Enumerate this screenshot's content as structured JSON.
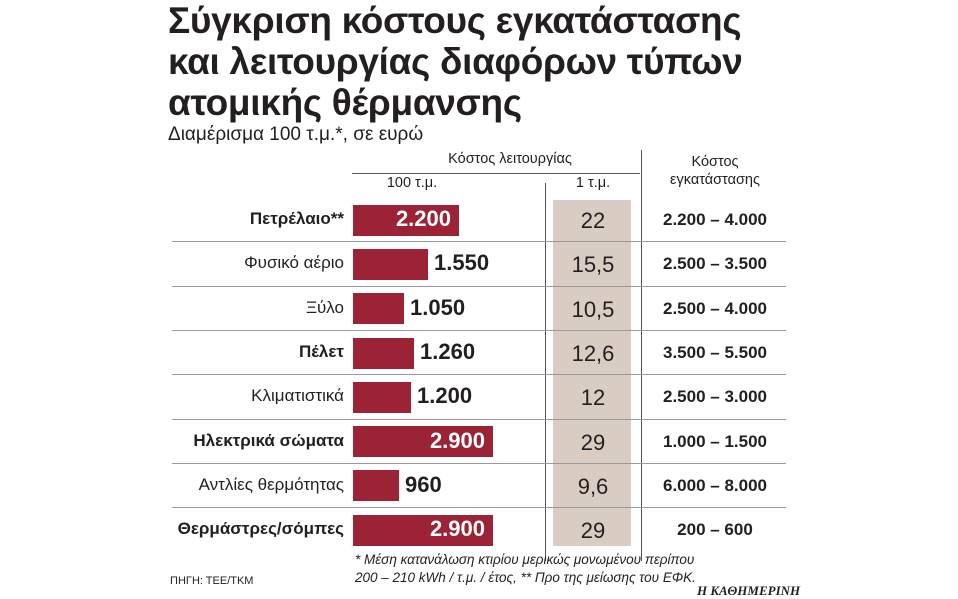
{
  "title_lines": [
    "Σύγκριση κόστους εγκατάστασης",
    "και λειτουργίας διαφόρων τύπων",
    "ατομικής θέρμανσης"
  ],
  "subtitle": "Διαμέρισμα 100 τ.μ.*, σε ευρώ",
  "headers": {
    "operating": "Κόστος λειτουργίας",
    "per100": "100 τ.μ.",
    "per1": "1 τ.μ.",
    "install_line1": "Κόστος",
    "install_line2": "εγκατάστασης"
  },
  "chart_data": {
    "type": "table",
    "columns": [
      "Κόστος λειτουργίας 100 τ.μ.",
      "Κόστος λειτουργίας 1 τ.μ.",
      "Κόστος εγκατάστασης"
    ],
    "rows": [
      {
        "label": "Πετρέλαιο**",
        "bold": true,
        "value": 2200,
        "value_label": "2.200",
        "per_sqm": "22",
        "install": "2.200 – 4.000"
      },
      {
        "label": "Φυσικό αέριο",
        "bold": false,
        "value": 1550,
        "value_label": "1.550",
        "per_sqm": "15,5",
        "install": "2.500 – 3.500"
      },
      {
        "label": "Ξύλο",
        "bold": false,
        "value": 1050,
        "value_label": "1.050",
        "per_sqm": "10,5",
        "install": "2.500 – 4.000"
      },
      {
        "label": "Πέλετ",
        "bold": true,
        "value": 1260,
        "value_label": "1.260",
        "per_sqm": "12,6",
        "install": "3.500 – 5.500"
      },
      {
        "label": "Κλιματιστικά",
        "bold": false,
        "value": 1200,
        "value_label": "1.200",
        "per_sqm": "12",
        "install": "2.500 – 3.000"
      },
      {
        "label": "Ηλεκτρικά σώματα",
        "bold": true,
        "value": 2900,
        "value_label": "2.900",
        "per_sqm": "29",
        "install": "1.000 – 1.500"
      },
      {
        "label": "Αντλίες θερμότητας",
        "bold": false,
        "value": 960,
        "value_label": "960",
        "per_sqm": "9,6",
        "install": "6.000 – 8.000"
      },
      {
        "label": "Θερμάστρες/σόμπες",
        "bold": true,
        "value": 2900,
        "value_label": "2.900",
        "per_sqm": "29",
        "install": "200 – 600"
      }
    ],
    "bar_color": "#9b2335",
    "shade_color": "#d9ccc2",
    "max_value": 2900
  },
  "footnote_lines": [
    "* Μέση κατανάλωση κτιρίου μερικώς μονωμένου περίπου",
    "200 – 210 kWh / τ.μ. / έτος, ** Προ της μείωσης του ΕΦΚ."
  ],
  "source": "ΠΗΓΗ: ΤΕΕ/ΤΚΜ",
  "brand": "Η ΚΑΘΗΜΕΡΙΝΗ"
}
